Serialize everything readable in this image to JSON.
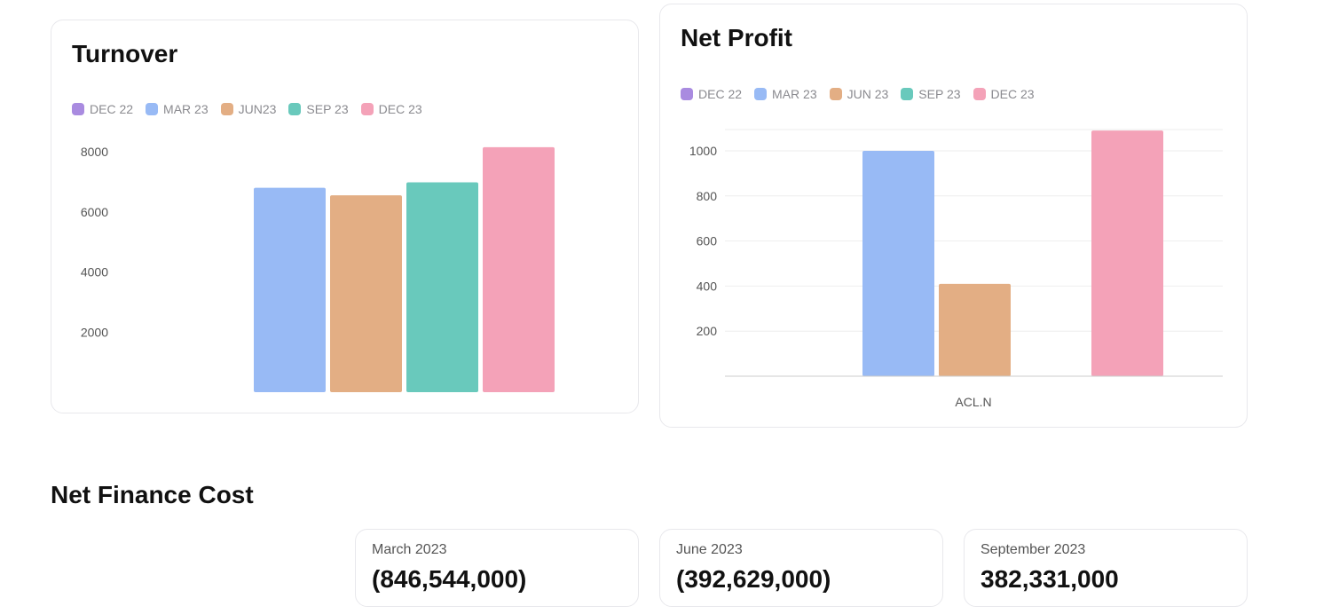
{
  "turnover": {
    "title": "Turnover",
    "legend": [
      {
        "label": "DEC 22",
        "color": "#a98be0"
      },
      {
        "label": "MAR 23",
        "color": "#98baf5"
      },
      {
        "label": "JUN23",
        "color": "#e3ae84"
      },
      {
        "label": "SEP 23",
        "color": "#69c9bc"
      },
      {
        "label": "DEC 23",
        "color": "#f4a2b8"
      }
    ]
  },
  "net_profit": {
    "title": "Net Profit",
    "legend": [
      {
        "label": "DEC 22",
        "color": "#a98be0"
      },
      {
        "label": "MAR 23",
        "color": "#98baf5"
      },
      {
        "label": "JUN 23",
        "color": "#e3ae84"
      },
      {
        "label": "SEP 23",
        "color": "#69c9bc"
      },
      {
        "label": "DEC 23",
        "color": "#f4a2b8"
      }
    ]
  },
  "net_finance_cost": {
    "title": "Net Finance Cost",
    "cards": [
      {
        "label": "March 2023",
        "value": "(846,544,000)"
      },
      {
        "label": "June 2023",
        "value": "(392,629,000)"
      },
      {
        "label": "September 2023",
        "value": "382,331,000"
      }
    ]
  },
  "chart_data": [
    {
      "type": "bar",
      "title": "Turnover",
      "series": [
        {
          "name": "DEC 22",
          "values": [
            0
          ]
        },
        {
          "name": "MAR 23",
          "values": [
            6800
          ]
        },
        {
          "name": "JUN23",
          "values": [
            6550
          ]
        },
        {
          "name": "SEP 23",
          "values": [
            6980
          ]
        },
        {
          "name": "DEC 23",
          "values": [
            8150
          ]
        }
      ],
      "yticks": [
        "8000",
        "6000",
        "4000",
        "2000"
      ],
      "ylim": [
        0,
        8000
      ],
      "grid": false,
      "legend_position": "top-left"
    },
    {
      "type": "bar",
      "title": "Net Profit",
      "categories": [
        "ACL.N"
      ],
      "series": [
        {
          "name": "DEC 22",
          "values": [
            0
          ]
        },
        {
          "name": "MAR 23",
          "values": [
            1000
          ]
        },
        {
          "name": "JUN 23",
          "values": [
            410
          ]
        },
        {
          "name": "SEP 23",
          "values": [
            0
          ]
        },
        {
          "name": "DEC 23",
          "values": [
            1090
          ]
        }
      ],
      "yticks": [
        "1000",
        "800",
        "600",
        "400",
        "200"
      ],
      "ylim": [
        0,
        1000
      ],
      "grid": true,
      "legend_position": "top-left"
    }
  ]
}
